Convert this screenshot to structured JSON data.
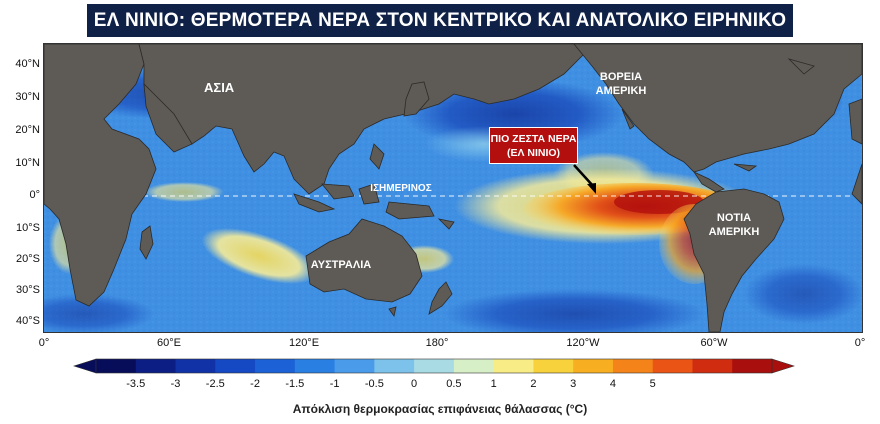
{
  "title": "ΕΛ ΝΙΝΙΟ: ΘΕΡΜΟΤΕΡΑ ΝΕΡΑ ΣΤΟΝ ΚΕΝΤΡΙΚΟ ΚΑΙ ΑΝΑΤΟΛΙΚΟ ΕΙΡΗΝΙΚΟ",
  "map": {
    "labels": {
      "asia": "ΑΣΙΑ",
      "north_america_1": "ΒΟΡΕΙΑ",
      "north_america_2": "ΑΜΕΡΙΚΗ",
      "south_america_1": "ΝΟΤΙΑ",
      "south_america_2": "ΑΜΕΡΙΚΗ",
      "australia": "ΑΥΣΤΡΑΛΙΑ",
      "equator": "ΙΣΗΜΕΡΙΝΟΣ"
    },
    "callout": {
      "line1": "ΠΙΟ ΖΕΣΤΑ ΝΕΡΑ",
      "line2": "(ΕΛ ΝΙΝΙΟ)"
    },
    "lat_labels": [
      "40°N",
      "30°N",
      "20°N",
      "10°N",
      "0°",
      "10°S",
      "20°S",
      "30°S",
      "40°S"
    ],
    "lon_labels": [
      "0°",
      "60°E",
      "120°E",
      "180°",
      "120°W",
      "60°W",
      "0°"
    ]
  },
  "colorbar": {
    "ticks": [
      "-3.5",
      "-3",
      "-2.5",
      "-2",
      "-1.5",
      "-1",
      "-0.5",
      "0",
      "0.5",
      "1",
      "2",
      "3",
      "4",
      "5"
    ],
    "label": "Απόκλιση θερμοκρασίας επιφάνειας θάλασσας (°C)",
    "colors": [
      "#080d5a",
      "#0c1e84",
      "#1032a6",
      "#1549c3",
      "#1c62d6",
      "#2a7fe3",
      "#4a9cea",
      "#7cc2ea",
      "#a8dbe4",
      "#d7efc7",
      "#f8ec86",
      "#f8d23c",
      "#f7ae20",
      "#f4841a",
      "#ea5515",
      "#d02c10",
      "#a80f0d"
    ]
  },
  "colors": {
    "title_bg": "#0f2147",
    "land": "#5e5a55",
    "callout_bg": "#b30f0f"
  }
}
